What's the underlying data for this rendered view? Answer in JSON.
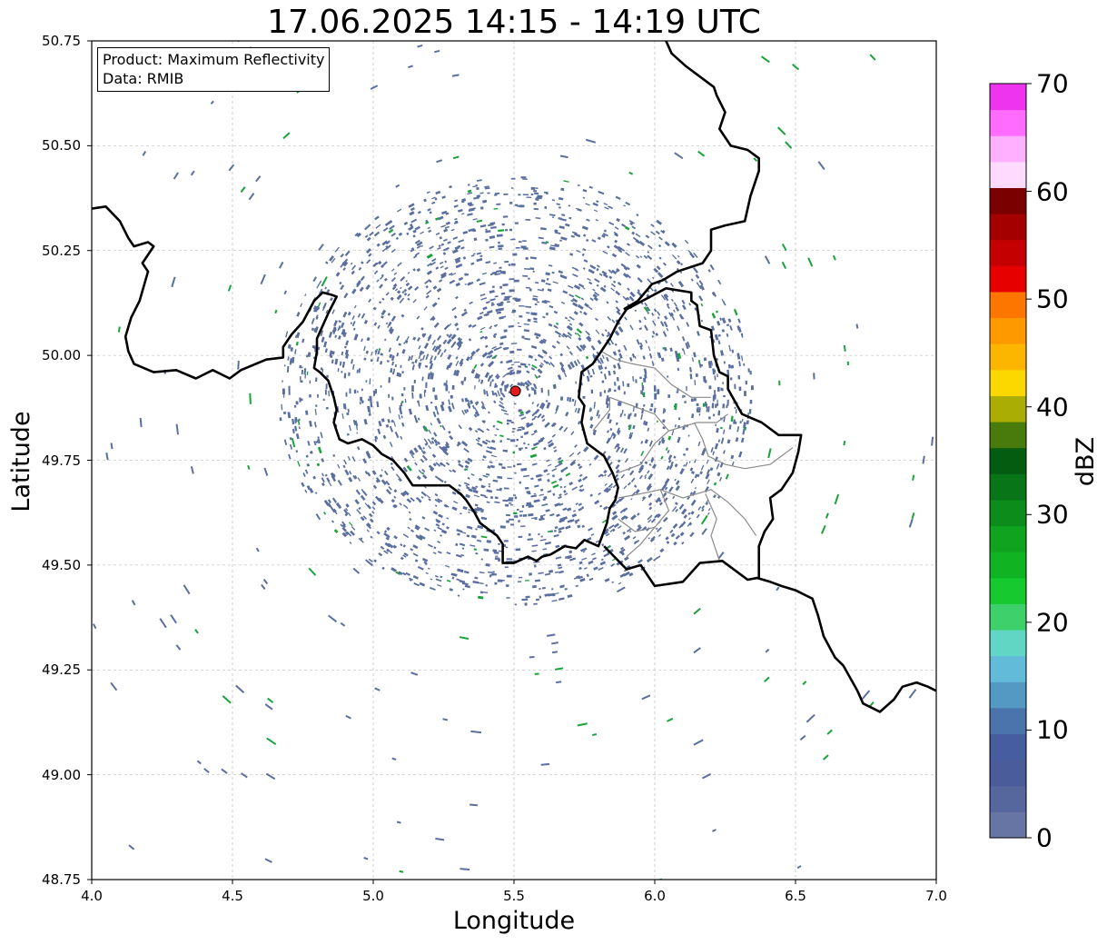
{
  "title": "17.06.2025 14:15 - 14:19 UTC",
  "info_box": {
    "product": "Product: Maximum Reflectivity",
    "data": "Data: RMIB"
  },
  "colorbar": {
    "label": "dBZ",
    "range": [
      0,
      70
    ],
    "ticks": [
      "0",
      "10",
      "20",
      "30",
      "40",
      "50",
      "60",
      "70"
    ],
    "colors": [
      "#6675a3",
      "#56679d",
      "#4a5d9a",
      "#465d9f",
      "#4b74ac",
      "#5498c4",
      "#62bbd9",
      "#62d6c4",
      "#3ed16b",
      "#15c92e",
      "#10b423",
      "#0fa31f",
      "#0c8d1b",
      "#087518",
      "#045c10",
      "#487a0c",
      "#aaad03",
      "#fdd800",
      "#fdb600",
      "#fe9900",
      "#fd7700",
      "#e70000",
      "#c40000",
      "#a40000",
      "#7a0000",
      "#ffdaff",
      "#ffb0ff",
      "#ff6cff",
      "#ef34ef"
    ]
  },
  "chart_data": {
    "type": "map",
    "title": "17.06.2025 14:15 - 14:19 UTC",
    "xlabel": "Longitude",
    "ylabel": "Latitude",
    "xlim": [
      4.0,
      7.0
    ],
    "ylim": [
      48.75,
      50.75
    ],
    "x_ticks": [
      "4.0",
      "4.5",
      "5.0",
      "5.5",
      "6.0",
      "6.5",
      "7.0"
    ],
    "y_ticks": [
      "48.75",
      "49.00",
      "49.25",
      "49.50",
      "49.75",
      "50.00",
      "50.25",
      "50.50",
      "50.75"
    ],
    "grid": true,
    "radar_site": {
      "lon": 5.505,
      "lat": 49.915,
      "color": "#e31a1c"
    },
    "echo_colors": {
      "clutter": "#5a6fa0",
      "light": "#1aa33a"
    },
    "borders": [
      [
        [
          4.0,
          50.35
        ],
        [
          4.05,
          50.355
        ],
        [
          4.1,
          50.32
        ],
        [
          4.13,
          50.28
        ],
        [
          4.15,
          50.26
        ],
        [
          4.2,
          50.27
        ],
        [
          4.22,
          50.26
        ],
        [
          4.18,
          50.22
        ],
        [
          4.2,
          50.2
        ],
        [
          4.17,
          50.13
        ],
        [
          4.14,
          50.09
        ],
        [
          4.12,
          50.045
        ],
        [
          4.13,
          50.01
        ],
        [
          4.15,
          49.98
        ],
        [
          4.22,
          49.96
        ],
        [
          4.3,
          49.965
        ],
        [
          4.37,
          49.945
        ],
        [
          4.43,
          49.965
        ],
        [
          4.49,
          49.945
        ],
        [
          4.53,
          49.965
        ],
        [
          4.62,
          49.99
        ],
        [
          4.68,
          49.995
        ],
        [
          4.68,
          50.02
        ],
        [
          4.71,
          50.05
        ],
        [
          4.75,
          50.08
        ],
        [
          4.79,
          50.13
        ],
        [
          4.82,
          50.15
        ],
        [
          4.85,
          50.145
        ],
        [
          4.87,
          50.14
        ],
        [
          4.84,
          50.1
        ],
        [
          4.82,
          50.07
        ],
        [
          4.8,
          50.04
        ],
        [
          4.8,
          50.01
        ],
        [
          4.79,
          49.97
        ],
        [
          4.81,
          49.96
        ],
        [
          4.84,
          49.94
        ],
        [
          4.86,
          49.9
        ],
        [
          4.87,
          49.87
        ],
        [
          4.86,
          49.84
        ],
        [
          4.88,
          49.8
        ],
        [
          4.91,
          49.79
        ],
        [
          4.96,
          49.8
        ],
        [
          5.0,
          49.785
        ],
        [
          5.03,
          49.765
        ],
        [
          5.07,
          49.75
        ],
        [
          5.11,
          49.72
        ],
        [
          5.14,
          49.69
        ],
        [
          5.18,
          49.69
        ],
        [
          5.23,
          49.69
        ],
        [
          5.27,
          49.69
        ],
        [
          5.31,
          49.67
        ],
        [
          5.33,
          49.655
        ],
        [
          5.36,
          49.625
        ],
        [
          5.38,
          49.6
        ],
        [
          5.44,
          49.57
        ],
        [
          5.46,
          49.55
        ],
        [
          5.46,
          49.505
        ],
        [
          5.5,
          49.505
        ],
        [
          5.55,
          49.52
        ],
        [
          5.58,
          49.51
        ],
        [
          5.6,
          49.52
        ],
        [
          5.63,
          49.525
        ],
        [
          5.68,
          49.545
        ],
        [
          5.72,
          49.54
        ],
        [
          5.75,
          49.56
        ],
        [
          5.8,
          49.545
        ],
        [
          5.83,
          49.6
        ],
        [
          5.84,
          49.635
        ],
        [
          5.86,
          49.655
        ],
        [
          5.87,
          49.685
        ],
        [
          5.85,
          49.72
        ],
        [
          5.82,
          49.76
        ],
        [
          5.76,
          49.79
        ],
        [
          5.74,
          49.84
        ],
        [
          5.75,
          49.88
        ],
        [
          5.73,
          49.9
        ],
        [
          5.74,
          49.96
        ],
        [
          5.78,
          49.98
        ],
        [
          5.84,
          50.04
        ],
        [
          5.87,
          50.08
        ],
        [
          5.9,
          50.11
        ],
        [
          6.04,
          50.16
        ],
        [
          6.13,
          50.15
        ],
        [
          6.13,
          50.13
        ],
        [
          6.15,
          50.12
        ],
        [
          6.16,
          50.07
        ],
        [
          6.2,
          50.06
        ],
        [
          6.21,
          50.0
        ],
        [
          6.23,
          49.96
        ],
        [
          6.26,
          49.95
        ],
        [
          6.26,
          49.92
        ],
        [
          6.31,
          49.86
        ],
        [
          6.38,
          49.84
        ],
        [
          6.44,
          49.81
        ],
        [
          6.52,
          49.81
        ],
        [
          6.51,
          49.77
        ],
        [
          6.49,
          49.72
        ],
        [
          6.45,
          49.68
        ],
        [
          6.41,
          49.66
        ],
        [
          6.42,
          49.61
        ],
        [
          6.39,
          49.58
        ],
        [
          6.37,
          49.545
        ],
        [
          6.37,
          49.47
        ],
        [
          6.33,
          49.465
        ],
        [
          6.24,
          49.51
        ],
        [
          6.16,
          49.505
        ],
        [
          6.1,
          49.46
        ],
        [
          6.0,
          49.45
        ],
        [
          5.95,
          49.5
        ],
        [
          5.9,
          49.49
        ],
        [
          5.82,
          49.545
        ]
      ],
      [
        [
          5.89,
          50.11
        ],
        [
          5.94,
          50.13
        ],
        [
          5.99,
          50.17
        ],
        [
          6.03,
          50.18
        ],
        [
          6.08,
          50.2
        ],
        [
          6.17,
          50.22
        ],
        [
          6.2,
          50.25
        ],
        [
          6.2,
          50.3
        ],
        [
          6.25,
          50.31
        ],
        [
          6.32,
          50.32
        ],
        [
          6.34,
          50.38
        ],
        [
          6.37,
          50.44
        ],
        [
          6.37,
          50.47
        ],
        [
          6.33,
          50.49
        ],
        [
          6.27,
          50.5
        ],
        [
          6.23,
          50.54
        ],
        [
          6.25,
          50.58
        ],
        [
          6.22,
          50.62
        ],
        [
          6.21,
          50.64
        ],
        [
          6.19,
          50.65
        ],
        [
          6.15,
          50.67
        ],
        [
          6.11,
          50.69
        ],
        [
          6.06,
          50.72
        ],
        [
          6.04,
          50.75
        ]
      ],
      [
        [
          6.36,
          49.47
        ],
        [
          6.41,
          49.46
        ],
        [
          6.45,
          49.45
        ],
        [
          6.5,
          49.44
        ],
        [
          6.56,
          49.42
        ],
        [
          6.58,
          49.38
        ],
        [
          6.6,
          49.33
        ],
        [
          6.64,
          49.28
        ],
        [
          6.67,
          49.26
        ],
        [
          6.72,
          49.2
        ],
        [
          6.74,
          49.17
        ],
        [
          6.8,
          49.15
        ],
        [
          6.85,
          49.18
        ],
        [
          6.88,
          49.21
        ],
        [
          6.93,
          49.22
        ],
        [
          6.97,
          49.21
        ],
        [
          7.0,
          49.2
        ]
      ]
    ],
    "internal_borders": [
      [
        [
          5.81,
          50.01
        ],
        [
          5.86,
          49.99
        ],
        [
          5.92,
          49.98
        ],
        [
          6.0,
          49.97
        ],
        [
          6.06,
          49.93
        ],
        [
          6.13,
          49.9
        ],
        [
          6.2,
          49.9
        ]
      ],
      [
        [
          5.87,
          49.72
        ],
        [
          5.95,
          49.74
        ],
        [
          6.0,
          49.79
        ],
        [
          6.05,
          49.82
        ],
        [
          6.1,
          49.83
        ],
        [
          6.15,
          49.84
        ],
        [
          6.22,
          49.84
        ],
        [
          6.26,
          49.86
        ]
      ],
      [
        [
          6.14,
          49.84
        ],
        [
          6.17,
          49.8
        ],
        [
          6.19,
          49.76
        ],
        [
          6.25,
          49.74
        ],
        [
          6.32,
          49.73
        ],
        [
          6.41,
          49.74
        ],
        [
          6.45,
          49.76
        ],
        [
          6.49,
          49.78
        ]
      ],
      [
        [
          5.87,
          49.66
        ],
        [
          5.95,
          49.67
        ],
        [
          6.02,
          49.68
        ],
        [
          6.1,
          49.66
        ],
        [
          6.2,
          49.68
        ],
        [
          6.26,
          49.65
        ],
        [
          6.32,
          49.61
        ],
        [
          6.36,
          49.57
        ]
      ],
      [
        [
          6.02,
          49.68
        ],
        [
          6.05,
          49.63
        ],
        [
          6.0,
          49.59
        ],
        [
          5.95,
          49.55
        ],
        [
          5.9,
          49.52
        ]
      ],
      [
        [
          6.18,
          49.67
        ],
        [
          6.22,
          49.61
        ],
        [
          6.2,
          49.57
        ],
        [
          6.22,
          49.53
        ],
        [
          6.23,
          49.51
        ]
      ],
      [
        [
          5.87,
          49.61
        ],
        [
          5.93,
          49.58
        ],
        [
          6.0,
          49.59
        ]
      ],
      [
        [
          5.84,
          49.9
        ],
        [
          5.92,
          49.88
        ],
        [
          6.0,
          49.86
        ],
        [
          6.05,
          49.82
        ]
      ],
      [
        [
          5.78,
          49.82
        ],
        [
          5.84,
          49.87
        ],
        [
          5.84,
          49.9
        ]
      ]
    ]
  }
}
